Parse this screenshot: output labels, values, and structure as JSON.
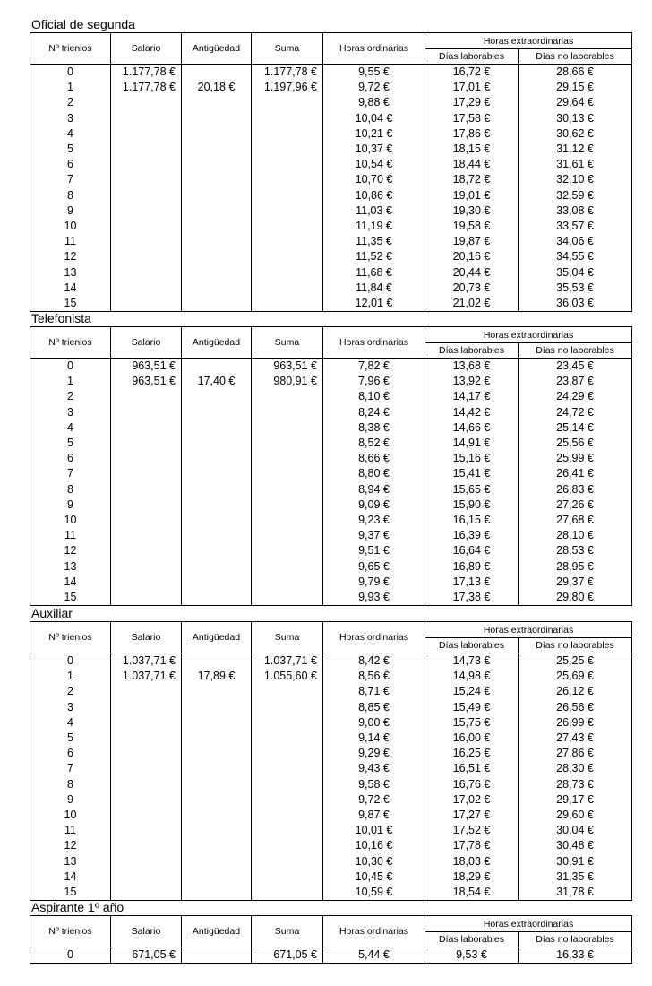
{
  "headers": {
    "trienios": "Nº trienios",
    "salario": "Salario",
    "antiguedad": "Antigüedad",
    "suma": "Suma",
    "horas_ordinarias": "Horas ordinarias",
    "horas_extra": "Horas extraordinarias",
    "dias_laborables": "Días laborables",
    "dias_no_laborables": "Días no laborables"
  },
  "sections": [
    {
      "title": "Oficial de segunda",
      "rows": [
        [
          "0",
          "1.177,78 €",
          "",
          "1.177,78 €",
          "9,55 €",
          "16,72 €",
          "28,66 €"
        ],
        [
          "1",
          "1.177,78 €",
          "20,18 €",
          "1.197,96 €",
          "9,72 €",
          "17,01 €",
          "29,15 €"
        ],
        [
          "2",
          "",
          "",
          "",
          "9,88 €",
          "17,29 €",
          "29,64 €"
        ],
        [
          "3",
          "",
          "",
          "",
          "10,04 €",
          "17,58 €",
          "30,13 €"
        ],
        [
          "4",
          "",
          "",
          "",
          "10,21 €",
          "17,86 €",
          "30,62 €"
        ],
        [
          "5",
          "",
          "",
          "",
          "10,37 €",
          "18,15 €",
          "31,12 €"
        ],
        [
          "6",
          "",
          "",
          "",
          "10,54 €",
          "18,44 €",
          "31,61 €"
        ],
        [
          "7",
          "",
          "",
          "",
          "10,70 €",
          "18,72 €",
          "32,10 €"
        ],
        [
          "8",
          "",
          "",
          "",
          "10,86 €",
          "19,01 €",
          "32,59 €"
        ],
        [
          "9",
          "",
          "",
          "",
          "11,03 €",
          "19,30 €",
          "33,08 €"
        ],
        [
          "10",
          "",
          "",
          "",
          "11,19 €",
          "19,58 €",
          "33,57 €"
        ],
        [
          "11",
          "",
          "",
          "",
          "11,35 €",
          "19,87 €",
          "34,06 €"
        ],
        [
          "12",
          "",
          "",
          "",
          "11,52 €",
          "20,16 €",
          "34,55 €"
        ],
        [
          "13",
          "",
          "",
          "",
          "11,68 €",
          "20,44 €",
          "35,04 €"
        ],
        [
          "14",
          "",
          "",
          "",
          "11,84 €",
          "20,73 €",
          "35,53 €"
        ],
        [
          "15",
          "",
          "",
          "",
          "12,01 €",
          "21,02 €",
          "36,03 €"
        ]
      ]
    },
    {
      "title": "Telefonista",
      "rows": [
        [
          "0",
          "963,51 €",
          "",
          "963,51 €",
          "7,82 €",
          "13,68 €",
          "23,45 €"
        ],
        [
          "1",
          "963,51 €",
          "17,40 €",
          "980,91 €",
          "7,96 €",
          "13,92 €",
          "23,87 €"
        ],
        [
          "2",
          "",
          "",
          "",
          "8,10 €",
          "14,17 €",
          "24,29 €"
        ],
        [
          "3",
          "",
          "",
          "",
          "8,24 €",
          "14,42 €",
          "24,72 €"
        ],
        [
          "4",
          "",
          "",
          "",
          "8,38 €",
          "14,66 €",
          "25,14 €"
        ],
        [
          "5",
          "",
          "",
          "",
          "8,52 €",
          "14,91 €",
          "25,56 €"
        ],
        [
          "6",
          "",
          "",
          "",
          "8,66 €",
          "15,16 €",
          "25,99 €"
        ],
        [
          "7",
          "",
          "",
          "",
          "8,80 €",
          "15,41 €",
          "26,41 €"
        ],
        [
          "8",
          "",
          "",
          "",
          "8,94 €",
          "15,65 €",
          "26,83 €"
        ],
        [
          "9",
          "",
          "",
          "",
          "9,09 €",
          "15,90 €",
          "27,26 €"
        ],
        [
          "10",
          "",
          "",
          "",
          "9,23 €",
          "16,15 €",
          "27,68 €"
        ],
        [
          "11",
          "",
          "",
          "",
          "9,37 €",
          "16,39 €",
          "28,10 €"
        ],
        [
          "12",
          "",
          "",
          "",
          "9,51 €",
          "16,64 €",
          "28,53 €"
        ],
        [
          "13",
          "",
          "",
          "",
          "9,65 €",
          "16,89 €",
          "28,95 €"
        ],
        [
          "14",
          "",
          "",
          "",
          "9,79 €",
          "17,13 €",
          "29,37 €"
        ],
        [
          "15",
          "",
          "",
          "",
          "9,93 €",
          "17,38 €",
          "29,80 €"
        ]
      ]
    },
    {
      "title": "Auxiliar",
      "rows": [
        [
          "0",
          "1.037,71 €",
          "",
          "1.037,71 €",
          "8,42 €",
          "14,73 €",
          "25,25 €"
        ],
        [
          "1",
          "1.037,71 €",
          "17,89 €",
          "1.055,60 €",
          "8,56 €",
          "14,98 €",
          "25,69 €"
        ],
        [
          "2",
          "",
          "",
          "",
          "8,71 €",
          "15,24 €",
          "26,12 €"
        ],
        [
          "3",
          "",
          "",
          "",
          "8,85 €",
          "15,49 €",
          "26,56 €"
        ],
        [
          "4",
          "",
          "",
          "",
          "9,00 €",
          "15,75 €",
          "26,99 €"
        ],
        [
          "5",
          "",
          "",
          "",
          "9,14 €",
          "16,00 €",
          "27,43 €"
        ],
        [
          "6",
          "",
          "",
          "",
          "9,29 €",
          "16,25 €",
          "27,86 €"
        ],
        [
          "7",
          "",
          "",
          "",
          "9,43 €",
          "16,51 €",
          "28,30 €"
        ],
        [
          "8",
          "",
          "",
          "",
          "9,58 €",
          "16,76 €",
          "28,73 €"
        ],
        [
          "9",
          "",
          "",
          "",
          "9,72 €",
          "17,02 €",
          "29,17 €"
        ],
        [
          "10",
          "",
          "",
          "",
          "9,87 €",
          "17,27 €",
          "29,60 €"
        ],
        [
          "11",
          "",
          "",
          "",
          "10,01 €",
          "17,52 €",
          "30,04 €"
        ],
        [
          "12",
          "",
          "",
          "",
          "10,16 €",
          "17,78 €",
          "30,48 €"
        ],
        [
          "13",
          "",
          "",
          "",
          "10,30 €",
          "18,03 €",
          "30,91 €"
        ],
        [
          "14",
          "",
          "",
          "",
          "10,45 €",
          "18,29 €",
          "31,35 €"
        ],
        [
          "15",
          "",
          "",
          "",
          "10,59 €",
          "18,54 €",
          "31,78 €"
        ]
      ]
    },
    {
      "title": "Aspirante 1º año",
      "rows": [
        [
          "0",
          "671,05 €",
          "",
          "671,05 €",
          "5,44 €",
          "9,53 €",
          "16,33 €"
        ]
      ]
    }
  ]
}
